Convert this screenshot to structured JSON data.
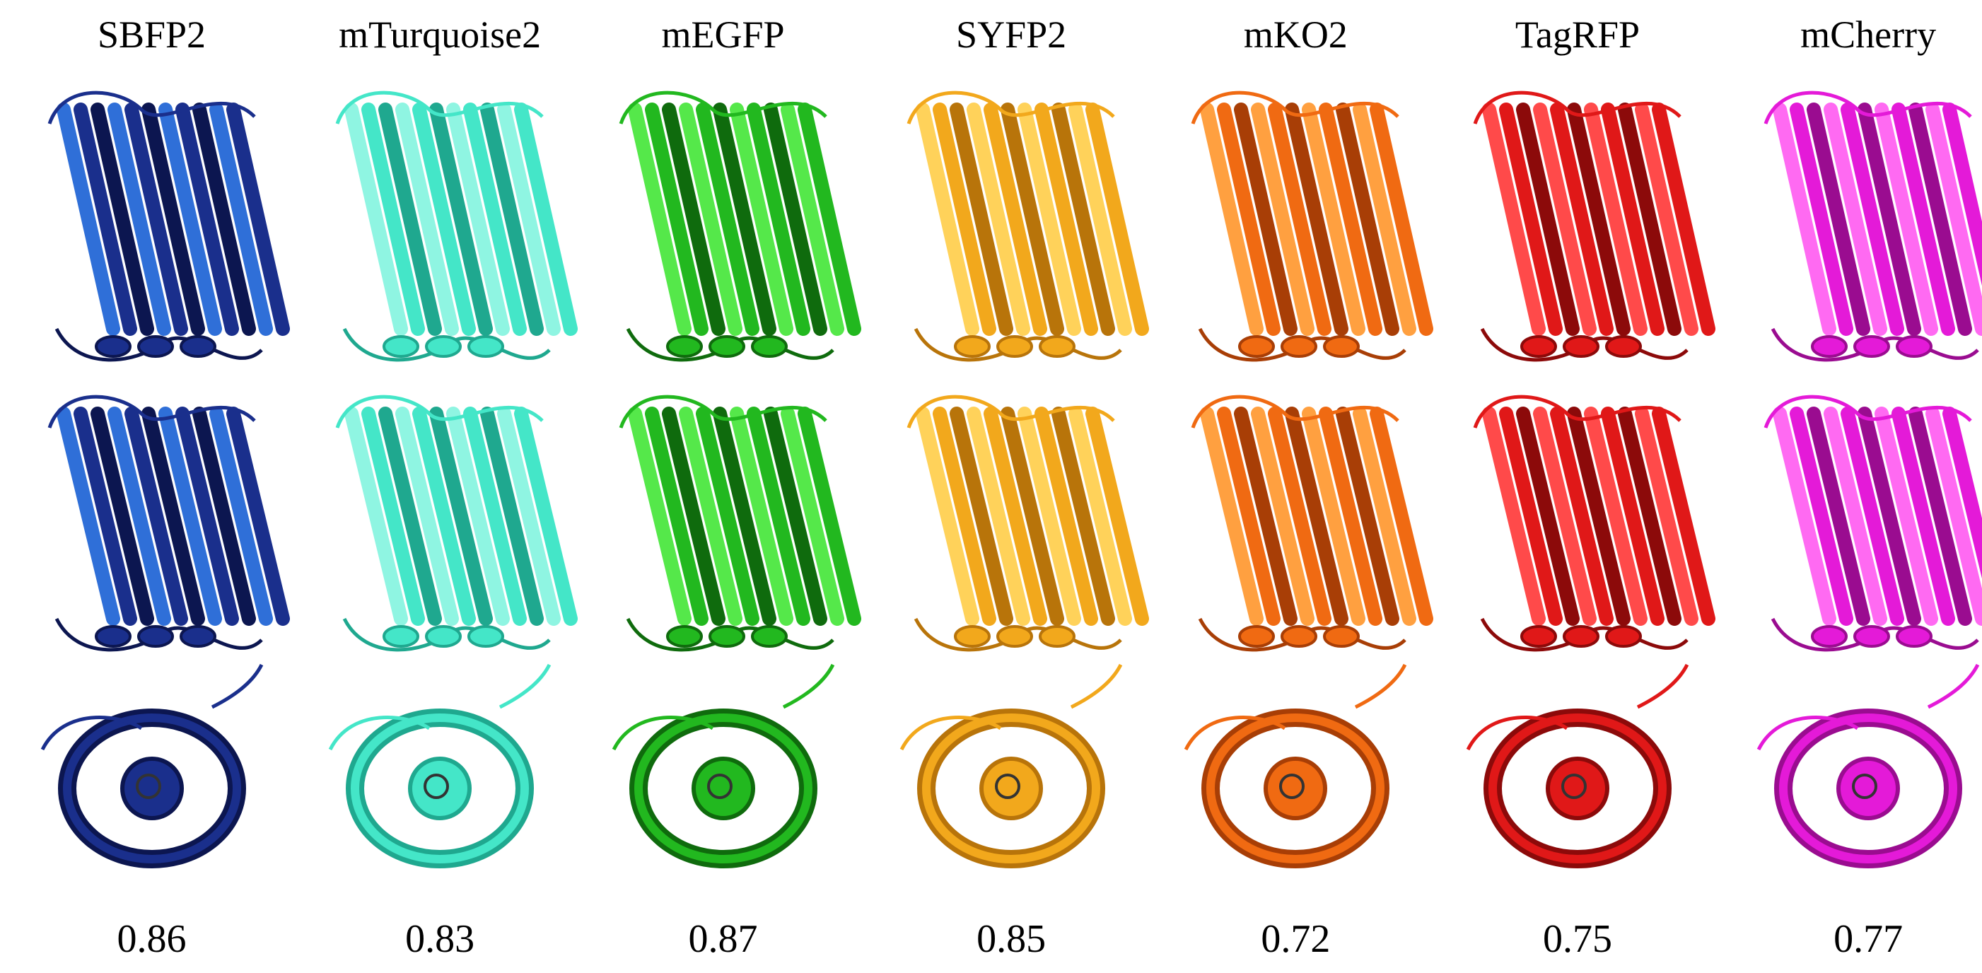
{
  "figure": {
    "proteins": [
      {
        "name": "SBFP2",
        "score": "0.86",
        "color": "#1a2f8c",
        "color_dark": "#0c1650",
        "color_light": "#2f6fd8"
      },
      {
        "name": "mTurquoise2",
        "score": "0.83",
        "color": "#44e6c8",
        "color_dark": "#1fa88f",
        "color_light": "#8ff5e2"
      },
      {
        "name": "mEGFP",
        "score": "0.87",
        "color": "#22b81f",
        "color_dark": "#0f6b0d",
        "color_light": "#55e84a"
      },
      {
        "name": "SYFP2",
        "score": "0.85",
        "color": "#f2a81c",
        "color_dark": "#b8740a",
        "color_light": "#ffd25a"
      },
      {
        "name": "mKO2",
        "score": "0.72",
        "color": "#f06a12",
        "color_dark": "#a83e06",
        "color_light": "#ffa040"
      },
      {
        "name": "TagRFP",
        "score": "0.75",
        "color": "#e01818",
        "color_dark": "#8c0a0a",
        "color_light": "#ff4a4a"
      },
      {
        "name": "mCherry",
        "score": "0.77",
        "color": "#e41ad8",
        "color_dark": "#9a0c90",
        "color_light": "#ff6af2"
      }
    ]
  }
}
